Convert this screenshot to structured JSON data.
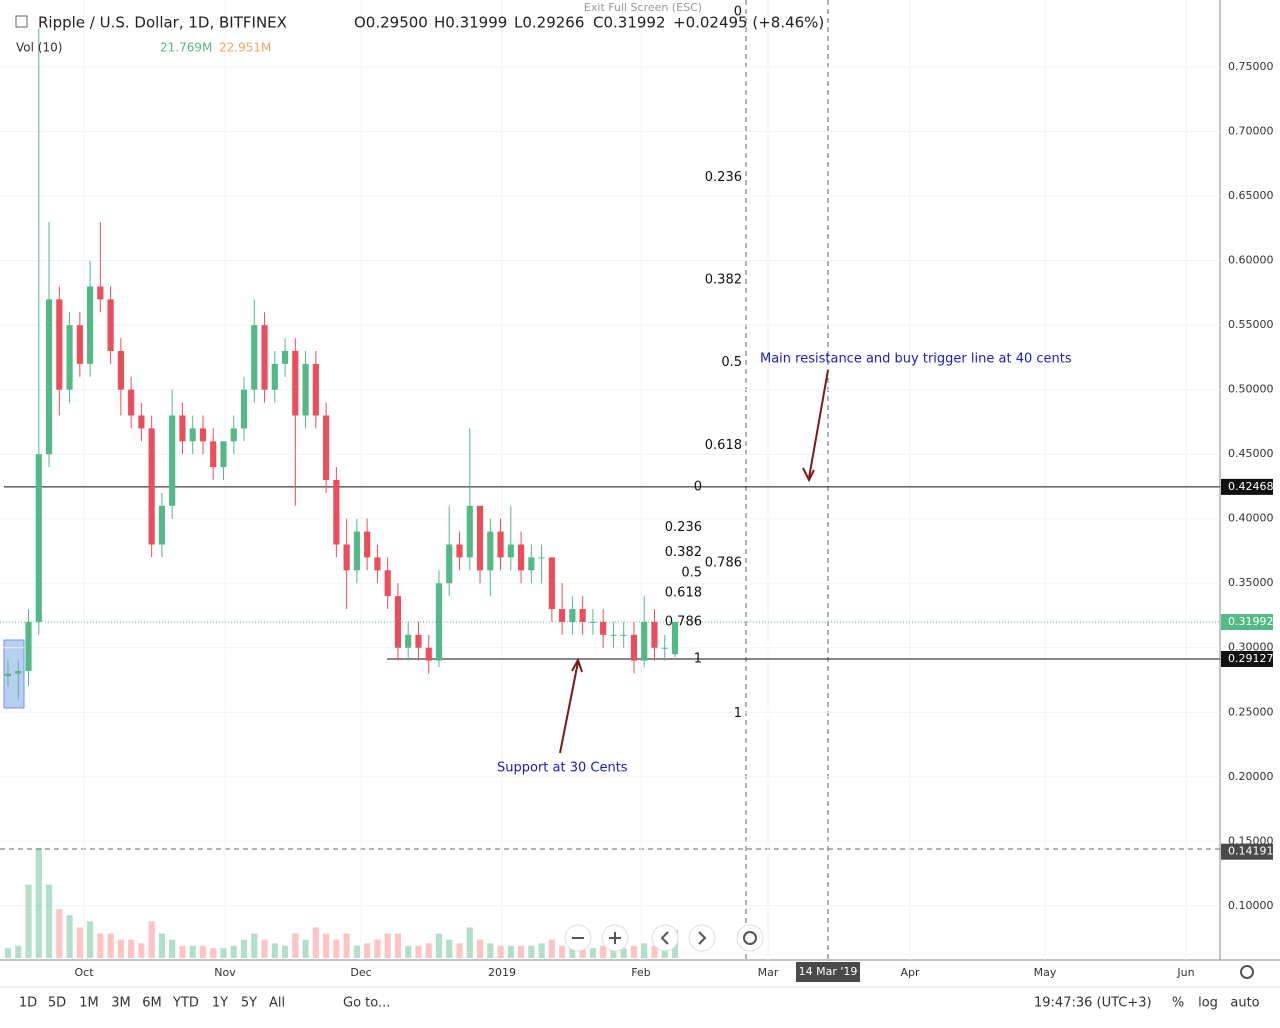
{
  "header": {
    "title": "Ripple / U.S. Dollar, 1D, BITFINEX",
    "ohlc": [
      "O0.29500",
      "H0.31999",
      "L0.29266",
      "C0.31992",
      "+0.02495 (+8.46%)"
    ],
    "volume_label": "Vol (10)",
    "volume_values": [
      "21.769M",
      "22.951M"
    ],
    "exit": "Exit Full Screen (ESC)"
  },
  "chart_data": {
    "type": "candlestick",
    "candles": {
      "open": [
        0.278,
        0.28,
        0.282,
        0.32,
        0.45,
        0.57,
        0.5,
        0.55,
        0.52,
        0.58,
        0.57,
        0.53,
        0.5,
        0.48,
        0.47,
        0.38,
        0.41,
        0.48,
        0.46,
        0.47,
        0.46,
        0.44,
        0.46,
        0.47,
        0.5,
        0.55,
        0.5,
        0.52,
        0.53,
        0.48,
        0.52,
        0.48,
        0.43,
        0.38,
        0.36,
        0.39,
        0.37,
        0.36,
        0.34,
        0.3,
        0.31,
        0.3,
        0.29,
        0.35,
        0.38,
        0.37,
        0.41,
        0.36,
        0.39,
        0.37,
        0.38,
        0.36,
        0.37,
        0.37,
        0.33,
        0.32,
        0.33,
        0.32,
        0.32,
        0.31,
        0.31,
        0.31,
        0.29,
        0.32,
        0.3,
        0.295
      ],
      "high": [
        0.29,
        0.29,
        0.33,
        0.78,
        0.63,
        0.58,
        0.56,
        0.56,
        0.6,
        0.63,
        0.58,
        0.54,
        0.51,
        0.49,
        0.48,
        0.42,
        0.5,
        0.49,
        0.48,
        0.48,
        0.47,
        0.46,
        0.48,
        0.51,
        0.57,
        0.56,
        0.53,
        0.54,
        0.54,
        0.53,
        0.53,
        0.49,
        0.44,
        0.4,
        0.4,
        0.4,
        0.38,
        0.37,
        0.35,
        0.32,
        0.32,
        0.31,
        0.36,
        0.41,
        0.39,
        0.47,
        0.41,
        0.4,
        0.4,
        0.41,
        0.39,
        0.38,
        0.38,
        0.37,
        0.35,
        0.34,
        0.34,
        0.33,
        0.33,
        0.32,
        0.32,
        0.32,
        0.34,
        0.33,
        0.31,
        0.31999
      ],
      "low": [
        0.27,
        0.26,
        0.27,
        0.31,
        0.44,
        0.48,
        0.49,
        0.51,
        0.51,
        0.56,
        0.52,
        0.48,
        0.47,
        0.46,
        0.37,
        0.37,
        0.4,
        0.45,
        0.45,
        0.45,
        0.43,
        0.43,
        0.45,
        0.46,
        0.49,
        0.49,
        0.49,
        0.51,
        0.41,
        0.47,
        0.47,
        0.42,
        0.37,
        0.33,
        0.35,
        0.36,
        0.35,
        0.33,
        0.29,
        0.29,
        0.29,
        0.28,
        0.285,
        0.34,
        0.36,
        0.36,
        0.35,
        0.34,
        0.36,
        0.36,
        0.35,
        0.35,
        0.35,
        0.32,
        0.31,
        0.31,
        0.31,
        0.31,
        0.3,
        0.3,
        0.3,
        0.28,
        0.285,
        0.29,
        0.29,
        0.29266
      ],
      "close": [
        0.28,
        0.282,
        0.32,
        0.45,
        0.57,
        0.5,
        0.55,
        0.52,
        0.58,
        0.57,
        0.53,
        0.5,
        0.48,
        0.47,
        0.38,
        0.41,
        0.48,
        0.46,
        0.47,
        0.46,
        0.44,
        0.46,
        0.47,
        0.5,
        0.55,
        0.5,
        0.52,
        0.53,
        0.48,
        0.52,
        0.48,
        0.43,
        0.38,
        0.36,
        0.39,
        0.37,
        0.36,
        0.34,
        0.3,
        0.31,
        0.3,
        0.29,
        0.35,
        0.38,
        0.37,
        0.41,
        0.36,
        0.39,
        0.37,
        0.38,
        0.36,
        0.37,
        0.37,
        0.33,
        0.32,
        0.33,
        0.32,
        0.32,
        0.31,
        0.31,
        0.31,
        0.29,
        0.32,
        0.3,
        0.3,
        0.31992
      ]
    },
    "volume": [
      8,
      10,
      60,
      90,
      60,
      40,
      35,
      25,
      30,
      20,
      20,
      15,
      15,
      12,
      30,
      20,
      15,
      10,
      10,
      10,
      8,
      8,
      10,
      15,
      20,
      15,
      12,
      10,
      20,
      15,
      25,
      20,
      15,
      20,
      10,
      12,
      15,
      20,
      20,
      10,
      10,
      12,
      20,
      15,
      12,
      25,
      15,
      12,
      10,
      10,
      10,
      10,
      12,
      15,
      10,
      8,
      8,
      8,
      10,
      8,
      8,
      10,
      12,
      10,
      8,
      23
    ],
    "ylim": [
      0.058,
      0.802
    ],
    "yticks": [
      {
        "value": 0.1,
        "label": "0.10000"
      },
      {
        "value": 0.15,
        "label": "0.15000"
      },
      {
        "value": 0.2,
        "label": "0.20000"
      },
      {
        "value": 0.25,
        "label": "0.25000"
      },
      {
        "value": 0.3,
        "label": "0.30000"
      },
      {
        "value": 0.35,
        "label": "0.35000"
      },
      {
        "value": 0.4,
        "label": "0.40000"
      },
      {
        "value": 0.45,
        "label": "0.45000"
      },
      {
        "value": 0.5,
        "label": "0.50000"
      },
      {
        "value": 0.55,
        "label": "0.55000"
      },
      {
        "value": 0.6,
        "label": "0.60000"
      },
      {
        "value": 0.65,
        "label": "0.65000"
      },
      {
        "value": 0.7,
        "label": "0.70000"
      },
      {
        "value": 0.75,
        "label": "0.75000"
      }
    ],
    "price_tags": [
      0.42468,
      0.31992,
      0.29127,
      0.14191
    ],
    "fibs": [
      {
        "high": 0.7926,
        "low": 0.2492,
        "levels": [
          0,
          0.236,
          0.382,
          0.5,
          0.618,
          0.786,
          1
        ]
      },
      {
        "high": 0.42468,
        "low": 0.29127,
        "levels": [
          0,
          0.236,
          0.382,
          0.5,
          0.618,
          0.786,
          1
        ]
      }
    ],
    "annotations": [
      "Main resistance and buy trigger line at 40 cents",
      "Support at 30 Cents"
    ],
    "xlabels": [
      "Oct",
      "Nov",
      "Dec",
      "2019",
      "Feb",
      "Mar",
      "Apr",
      "May",
      "Jun"
    ],
    "crosshair_label": "14 Mar '19"
  },
  "toolbar": {
    "ranges": [
      "1D",
      "5D",
      "1M",
      "3M",
      "6M",
      "YTD",
      "1Y",
      "5Y",
      "All"
    ],
    "goto": "Go to...",
    "clock": "19:47:36 (UTC+3)",
    "right": [
      "%",
      "log",
      "auto"
    ]
  }
}
